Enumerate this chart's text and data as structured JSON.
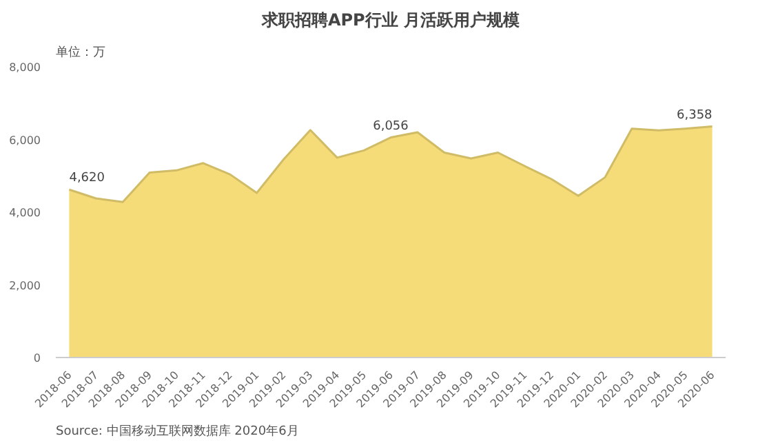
{
  "chart_data": {
    "type": "area",
    "title": "求职招聘APP行业 月活跃用户规模",
    "ylabel": "单位：万",
    "annotations": [
      "Source: 中国移动互联网数据库 2020年6月"
    ],
    "categories": [
      "2018-06",
      "2018-07",
      "2018-08",
      "2018-09",
      "2018-10",
      "2018-11",
      "2018-12",
      "2019-01",
      "2019-02",
      "2019-03",
      "2019-04",
      "2019-05",
      "2019-06",
      "2019-07",
      "2019-08",
      "2019-09",
      "2019-10",
      "2019-11",
      "2019-12",
      "2020-01",
      "2020-02",
      "2020-03",
      "2020-04",
      "2020-05",
      "2020-06"
    ],
    "series": [
      {
        "color": "#f5dc78",
        "values": [
          4620,
          4380,
          4280,
          5090,
          5150,
          5350,
          5040,
          4530,
          5450,
          6260,
          5500,
          5700,
          6056,
          6200,
          5640,
          5480,
          5640,
          5270,
          4910,
          4450,
          4960,
          6300,
          6250,
          6300,
          6358
        ],
        "value_labels": [
          "4,620",
          null,
          null,
          null,
          null,
          null,
          null,
          null,
          null,
          null,
          null,
          null,
          "6,056",
          null,
          null,
          null,
          null,
          null,
          null,
          null,
          null,
          null,
          null,
          null,
          "6,358"
        ]
      }
    ],
    "ylim": [
      0,
      8000
    ],
    "yticks": [
      {
        "value": 0,
        "label": "0"
      },
      {
        "value": 2000,
        "label": "2,000"
      },
      {
        "value": 4000,
        "label": "4,000"
      },
      {
        "value": 6000,
        "label": "6,000"
      },
      {
        "value": 8000,
        "label": "8,000"
      }
    ],
    "grid": false
  }
}
